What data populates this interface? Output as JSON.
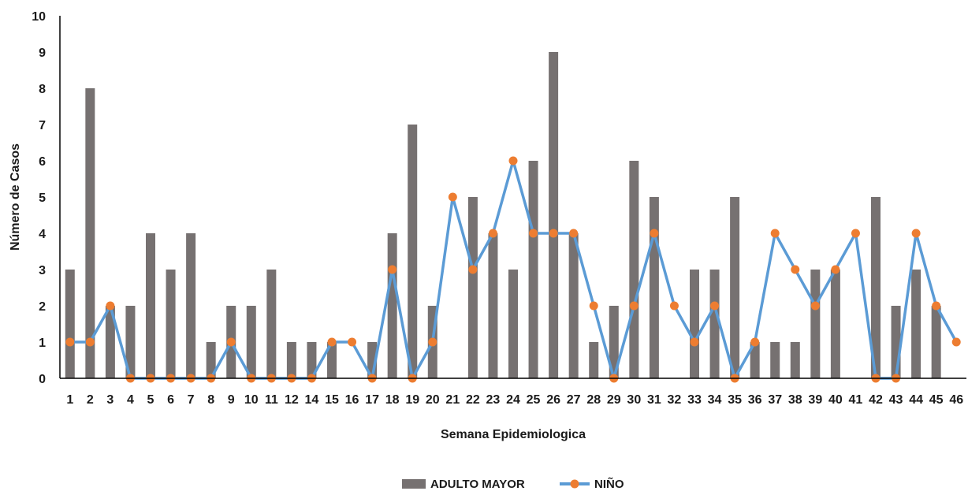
{
  "chart_data": {
    "type": "bar+line",
    "title": "",
    "xlabel": "Semana Epidemiologica",
    "ylabel": "Número de Casos",
    "ylim": [
      0,
      10
    ],
    "yticks": [
      "0",
      "1",
      "2",
      "3",
      "4",
      "5",
      "6",
      "7",
      "8",
      "9",
      "10"
    ],
    "grid": false,
    "legend_position": "bottom",
    "categories": [
      "1",
      "2",
      "3",
      "4",
      "5",
      "6",
      "7",
      "8",
      "9",
      "10",
      "11",
      "12",
      "14",
      "15",
      "16",
      "17",
      "18",
      "19",
      "20",
      "21",
      "22",
      "23",
      "24",
      "25",
      "26",
      "27",
      "28",
      "29",
      "30",
      "31",
      "32",
      "33",
      "34",
      "35",
      "36",
      "37",
      "38",
      "39",
      "40",
      "41",
      "42",
      "43",
      "44",
      "45",
      "46"
    ],
    "series": [
      {
        "name": "ADULTO MAYOR",
        "type": "bar",
        "color": "#767171",
        "values": [
          3,
          8,
          2,
          2,
          4,
          3,
          4,
          1,
          2,
          2,
          3,
          1,
          1,
          1,
          0,
          1,
          4,
          7,
          2,
          0,
          5,
          4,
          3,
          6,
          9,
          4,
          1,
          2,
          6,
          5,
          0,
          3,
          3,
          5,
          1,
          1,
          1,
          3,
          3,
          0,
          5,
          2,
          3,
          2,
          0
        ]
      },
      {
        "name": "NIÑO",
        "type": "line",
        "color": "#5B9BD5",
        "marker_color": "#ED7D31",
        "values": [
          1,
          1,
          2,
          0,
          0,
          0,
          0,
          0,
          1,
          0,
          0,
          0,
          0,
          1,
          1,
          0,
          3,
          0,
          1,
          5,
          3,
          4,
          6,
          4,
          4,
          4,
          2,
          0,
          2,
          4,
          2,
          1,
          2,
          0,
          1,
          4,
          3,
          2,
          3,
          4,
          0,
          0,
          4,
          2,
          1
        ]
      }
    ]
  }
}
